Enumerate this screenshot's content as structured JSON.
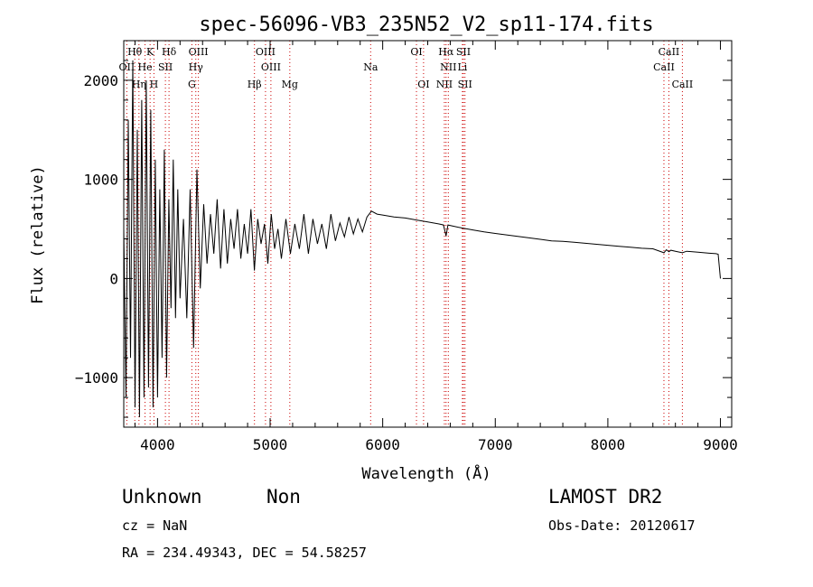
{
  "footer": {
    "class_label": "Unknown",
    "subclass_label": "Non",
    "survey_label": "LAMOST DR2",
    "cz_text": "cz = NaN",
    "obs_date_text": "Obs-Date: 20120617",
    "radec_text": "RA = 234.49343, DEC =  54.58257"
  },
  "chart_data": {
    "type": "line",
    "title": "spec-56096-VB3_235N52_V2_sp11-174.fits",
    "xlabel": "Wavelength (Å)",
    "ylabel": "Flux (relative)",
    "xlim": [
      3700,
      9100
    ],
    "ylim": [
      -1500,
      2400
    ],
    "x_ticks": [
      4000,
      5000,
      6000,
      7000,
      8000,
      9000
    ],
    "y_ticks": [
      -1000,
      0,
      1000,
      2000
    ],
    "y_tick_labels": [
      "−1000",
      "0",
      "1000",
      "2000"
    ],
    "grid": false,
    "series": [
      {
        "color": "#000000",
        "x": [
          3700,
          3720,
          3740,
          3760,
          3780,
          3800,
          3820,
          3840,
          3860,
          3880,
          3900,
          3920,
          3940,
          3960,
          3980,
          4000,
          4020,
          4040,
          4060,
          4080,
          4100,
          4120,
          4140,
          4160,
          4180,
          4200,
          4230,
          4260,
          4290,
          4320,
          4350,
          4380,
          4410,
          4440,
          4470,
          4500,
          4530,
          4560,
          4590,
          4620,
          4650,
          4680,
          4710,
          4740,
          4770,
          4800,
          4830,
          4860,
          4890,
          4920,
          4950,
          4980,
          5010,
          5040,
          5070,
          5100,
          5140,
          5180,
          5220,
          5260,
          5300,
          5340,
          5380,
          5420,
          5460,
          5500,
          5540,
          5580,
          5620,
          5660,
          5700,
          5740,
          5780,
          5820,
          5860,
          5900,
          5950,
          6000,
          6100,
          6200,
          6300,
          6400,
          6500,
          6540,
          6563,
          6580,
          6620,
          6700,
          6800,
          6900,
          7000,
          7100,
          7200,
          7300,
          7400,
          7500,
          7600,
          7700,
          7800,
          7900,
          8000,
          8100,
          8200,
          8300,
          8400,
          8498,
          8520,
          8542,
          8560,
          8600,
          8662,
          8700,
          8800,
          8900,
          8960,
          8980,
          9000
        ],
        "y": [
          500,
          -1200,
          1600,
          -800,
          2200,
          -1300,
          1500,
          -1400,
          1800,
          -1200,
          2000,
          -1100,
          1700,
          -1300,
          1200,
          -1200,
          900,
          -800,
          1300,
          -1000,
          800,
          -300,
          1200,
          -400,
          900,
          -200,
          600,
          -400,
          900,
          -700,
          1100,
          -100,
          750,
          150,
          650,
          250,
          800,
          100,
          700,
          150,
          600,
          300,
          700,
          200,
          550,
          250,
          700,
          80,
          600,
          350,
          550,
          150,
          650,
          300,
          500,
          200,
          600,
          250,
          550,
          300,
          650,
          250,
          600,
          350,
          550,
          300,
          650,
          380,
          560,
          420,
          620,
          450,
          600,
          470,
          620,
          680,
          650,
          640,
          620,
          610,
          590,
          570,
          550,
          540,
          430,
          540,
          530,
          510,
          490,
          470,
          455,
          440,
          425,
          410,
          395,
          380,
          375,
          365,
          355,
          345,
          335,
          325,
          315,
          305,
          300,
          260,
          290,
          270,
          285,
          275,
          260,
          275,
          265,
          255,
          250,
          245,
          0
        ]
      }
    ],
    "lines": [
      {
        "label": "Hθ",
        "x": 3798,
        "row": 0
      },
      {
        "label": "K",
        "x": 3934,
        "row": 0
      },
      {
        "label": "Hδ",
        "x": 4102,
        "row": 0
      },
      {
        "label": "OIII",
        "x": 4363,
        "row": 0
      },
      {
        "label": "OIII",
        "x": 4959,
        "row": 0
      },
      {
        "label": "OI",
        "x": 6300,
        "row": 0
      },
      {
        "label": "Hα",
        "x": 6563,
        "row": 0
      },
      {
        "label": "SII",
        "x": 6717,
        "row": 0
      },
      {
        "label": "CaII",
        "x": 8542,
        "row": 0
      },
      {
        "label": "OII",
        "x": 3727,
        "row": 1
      },
      {
        "label": "He",
        "x": 3889,
        "row": 1
      },
      {
        "label": "SII",
        "x": 4070,
        "row": 1
      },
      {
        "label": "Hγ",
        "x": 4340,
        "row": 1
      },
      {
        "label": "OIII",
        "x": 5007,
        "row": 1
      },
      {
        "label": "Na",
        "x": 5893,
        "row": 1
      },
      {
        "label": "NII",
        "x": 6583,
        "row": 1
      },
      {
        "label": "Li",
        "x": 6708,
        "row": 1
      },
      {
        "label": "CaII",
        "x": 8498,
        "row": 1
      },
      {
        "label": "Hη",
        "x": 3835,
        "row": 2
      },
      {
        "label": "H",
        "x": 3968,
        "row": 2
      },
      {
        "label": "G",
        "x": 4305,
        "row": 2
      },
      {
        "label": "Hβ",
        "x": 4861,
        "row": 2
      },
      {
        "label": "Mg",
        "x": 5175,
        "row": 2
      },
      {
        "label": "OI",
        "x": 6363,
        "row": 2
      },
      {
        "label": "NII",
        "x": 6548,
        "row": 2
      },
      {
        "label": "SII",
        "x": 6731,
        "row": 2
      },
      {
        "label": "CaII",
        "x": 8662,
        "row": 2
      }
    ],
    "line_color": "#cc0000"
  }
}
